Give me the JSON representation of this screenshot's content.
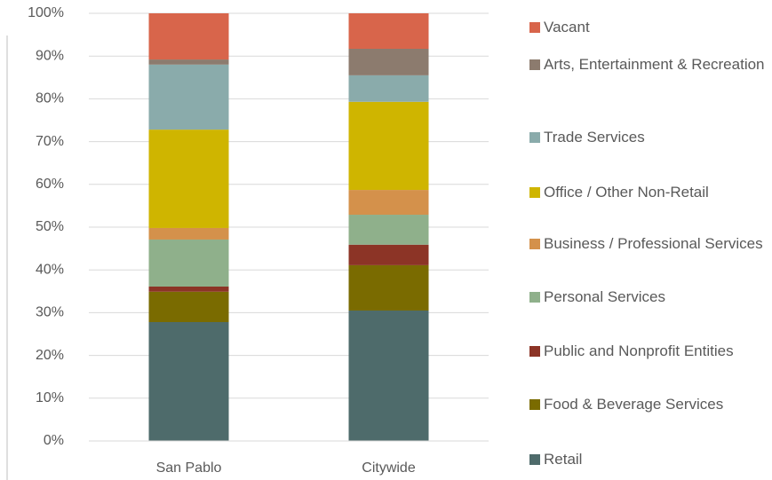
{
  "chart_data": {
    "type": "stacked_bar",
    "categories": [
      "San Pablo",
      "Citywide"
    ],
    "series": [
      {
        "name": "Retail",
        "color": "#4e6b6b",
        "values": [
          27.8,
          30.5
        ]
      },
      {
        "name": "Food & Beverage Services",
        "color": "#7a6b00",
        "values": [
          7.1,
          10.6
        ]
      },
      {
        "name": "Public and Nonprofit Entities",
        "color": "#8c3426",
        "values": [
          1.2,
          4.8
        ]
      },
      {
        "name": "Personal Services",
        "color": "#8fb08b",
        "values": [
          11,
          7
        ]
      },
      {
        "name": "Business / Professional Services",
        "color": "#d4914b",
        "values": [
          2.7,
          5.8
        ]
      },
      {
        "name": "Office / Other Non-Retail",
        "color": "#cfb500",
        "values": [
          23,
          20.6
        ]
      },
      {
        "name": "Trade Services",
        "color": "#8aabab",
        "values": [
          15.2,
          6.2
        ]
      },
      {
        "name": "Arts, Entertainment & Recreation",
        "color": "#8c7b6e",
        "values": [
          1.2,
          6.2
        ]
      },
      {
        "name": "Vacant",
        "color": "#d8654b",
        "values": [
          10.8,
          8.3
        ]
      }
    ],
    "ylim": [
      0,
      100
    ],
    "yticks": [
      {
        "value": 0,
        "label": "0%"
      },
      {
        "value": 10,
        "label": "10%"
      },
      {
        "value": 20,
        "label": "20%"
      },
      {
        "value": 30,
        "label": "30%"
      },
      {
        "value": 40,
        "label": "40%"
      },
      {
        "value": 50,
        "label": "50%"
      },
      {
        "value": 60,
        "label": "60%"
      },
      {
        "value": 70,
        "label": "70%"
      },
      {
        "value": 80,
        "label": "80%"
      },
      {
        "value": 90,
        "label": "90%"
      },
      {
        "value": 100,
        "label": "100%"
      }
    ],
    "grid": true
  }
}
